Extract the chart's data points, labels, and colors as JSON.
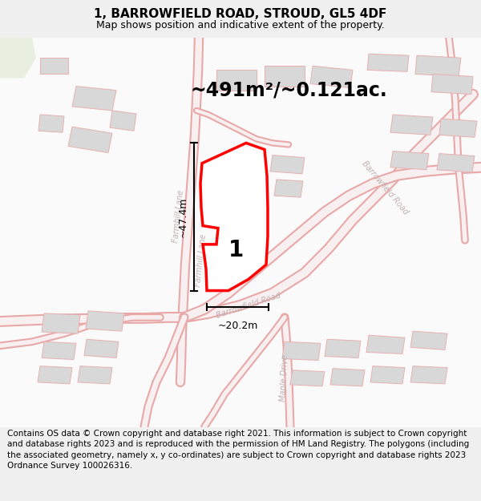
{
  "title": "1, BARROWFIELD ROAD, STROUD, GL5 4DF",
  "subtitle": "Map shows position and indicative extent of the property.",
  "area_label": "~491m²/~0.121ac.",
  "plot_number": "1",
  "dim_vertical": "~47.4m",
  "dim_horizontal": "~20.2m",
  "footnote": "Contains OS data © Crown copyright and database right 2021. This information is subject to Crown copyright and database rights 2023 and is reproduced with the permission of HM Land Registry. The polygons (including the associated geometry, namely x, y co-ordinates) are subject to Crown copyright and database rights 2023 Ordnance Survey 100026316.",
  "bg_color": "#f0f0f0",
  "map_bg": "#ffffff",
  "road_edge_color": "#e8a8a8",
  "road_fill_color": "#f8f0f0",
  "building_face_color": "#d8d8d8",
  "building_edge_color": "#e8b0b0",
  "plot_color": "#ff0000",
  "text_color": "#000000",
  "road_label_color": "#c0b0b0",
  "title_fontsize": 11,
  "subtitle_fontsize": 9,
  "footnote_fontsize": 7.5,
  "road_label_fontsize": 7,
  "area_fontsize": 17,
  "dim_fontsize": 9,
  "plot_num_fontsize": 20
}
